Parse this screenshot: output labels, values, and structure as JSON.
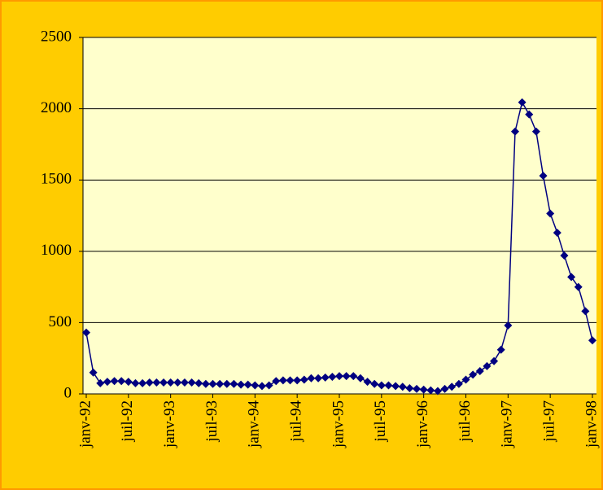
{
  "chart_data": {
    "type": "line",
    "categories": [
      "janv-92",
      null,
      null,
      null,
      null,
      null,
      "juil-92",
      null,
      null,
      null,
      null,
      null,
      "janv-93",
      null,
      null,
      null,
      null,
      null,
      "juil-93",
      null,
      null,
      null,
      null,
      null,
      "janv-94",
      null,
      null,
      null,
      null,
      null,
      "juil-94",
      null,
      null,
      null,
      null,
      null,
      "janv-95",
      null,
      null,
      null,
      null,
      null,
      "juil-95",
      null,
      null,
      null,
      null,
      null,
      "janv-96",
      null,
      null,
      null,
      null,
      null,
      "juil-96",
      null,
      null,
      null,
      null,
      null,
      "janv-97",
      null,
      null,
      null,
      null,
      null,
      "juil-97",
      null,
      null,
      null,
      null,
      null,
      "janv-98"
    ],
    "values": [
      430,
      150,
      75,
      85,
      90,
      90,
      85,
      75,
      75,
      80,
      80,
      80,
      80,
      80,
      80,
      80,
      75,
      70,
      70,
      70,
      70,
      70,
      65,
      65,
      60,
      55,
      60,
      90,
      95,
      95,
      95,
      100,
      110,
      110,
      115,
      120,
      125,
      125,
      125,
      110,
      85,
      70,
      60,
      60,
      55,
      50,
      40,
      35,
      30,
      25,
      20,
      35,
      50,
      70,
      100,
      135,
      160,
      195,
      230,
      310,
      480,
      1840,
      2045,
      1960,
      1840,
      1530,
      1265,
      1130,
      970,
      820,
      750,
      580,
      375
    ],
    "color": "#000080",
    "ylim": [
      0,
      2500
    ],
    "yticks": [
      0,
      500,
      1000,
      1500,
      2000,
      2500
    ],
    "grid": true
  }
}
